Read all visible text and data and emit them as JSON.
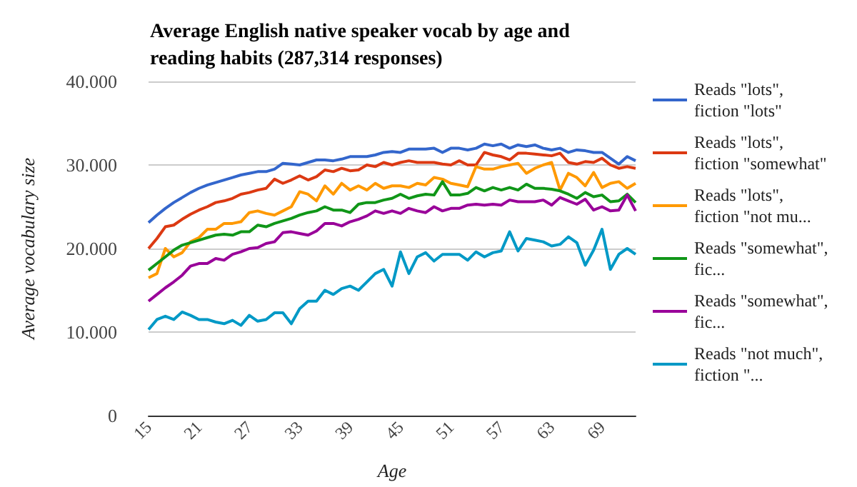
{
  "chart_data": {
    "type": "line",
    "title": "Average English native speaker vocab by age and reading habits (287,314 responses)",
    "xlabel": "Age",
    "ylabel": "Average vocabulary size",
    "categories": [
      "15",
      null,
      null,
      null,
      null,
      null,
      "21",
      null,
      null,
      null,
      null,
      null,
      "27",
      null,
      null,
      null,
      null,
      null,
      "33",
      null,
      null,
      null,
      null,
      null,
      "39",
      null,
      null,
      null,
      null,
      null,
      "45",
      null,
      null,
      null,
      null,
      null,
      "51",
      null,
      null,
      null,
      null,
      null,
      "57",
      null,
      null,
      null,
      null,
      null,
      "63",
      null,
      null,
      null,
      null,
      null,
      "69",
      null,
      null,
      null,
      null
    ],
    "ylim": [
      0,
      40000
    ],
    "yticks": [
      0,
      {
        "value": 10000,
        "label": "10.000"
      },
      {
        "value": 20000,
        "label": "20.000"
      },
      {
        "value": 30000,
        "label": "30.000"
      },
      {
        "value": 40000,
        "label": "40.000"
      }
    ],
    "grid": "y",
    "legend": "right",
    "marker": "none",
    "series": [
      {
        "name": "Reads \"lots\", fiction \"lots\"",
        "color": "#3366cc",
        "values": [
          23100,
          24000,
          24800,
          25500,
          26100,
          26700,
          27200,
          27600,
          27900,
          28200,
          28500,
          28800,
          29000,
          29200,
          29200,
          29500,
          30200,
          30100,
          30000,
          30300,
          30600,
          30600,
          30500,
          30700,
          31000,
          31000,
          31000,
          31200,
          31500,
          31600,
          31500,
          31900,
          31900,
          31900,
          32000,
          31500,
          32000,
          32000,
          31800,
          32000,
          32500,
          32300,
          32500,
          32000,
          32400,
          32200,
          32400,
          32000,
          31800,
          32000,
          31500,
          31800,
          31700,
          31500,
          31500,
          30800,
          30100,
          31000,
          30500
        ]
      },
      {
        "name": "Reads \"lots\", fiction \"somewhat\"",
        "color": "#dc3912",
        "values": [
          20000,
          21200,
          22600,
          22800,
          23500,
          24100,
          24600,
          25000,
          25500,
          25700,
          26000,
          26500,
          26700,
          27000,
          27200,
          28300,
          27800,
          28200,
          28700,
          28200,
          28600,
          29400,
          29200,
          29600,
          29300,
          29400,
          30000,
          29800,
          30300,
          30000,
          30300,
          30500,
          30300,
          30300,
          30300,
          30100,
          30000,
          30500,
          30000,
          30000,
          31500,
          31200,
          31000,
          30600,
          31400,
          31400,
          31300,
          31200,
          31100,
          31400,
          30300,
          30100,
          30400,
          30300,
          30800,
          30000,
          29600,
          29800,
          29600
        ]
      },
      {
        "name": "Reads \"lots\", fiction \"not mu...",
        "color": "#ff9900",
        "values": [
          16500,
          17000,
          20000,
          19000,
          19500,
          20800,
          21300,
          22300,
          22300,
          23000,
          23000,
          23200,
          24300,
          24500,
          24200,
          24000,
          24500,
          25000,
          26800,
          26500,
          25700,
          27500,
          26500,
          27800,
          27000,
          27500,
          27000,
          27800,
          27200,
          27500,
          27500,
          27300,
          27800,
          27600,
          28500,
          28300,
          27800,
          27600,
          27400,
          29800,
          29500,
          29500,
          29800,
          30000,
          30200,
          29000,
          29600,
          30000,
          30300,
          27000,
          29000,
          28500,
          27500,
          29100,
          27300,
          27800,
          28000,
          27200,
          27800
        ]
      },
      {
        "name": "Reads \"somewhat\", fic...",
        "color": "#109618",
        "values": [
          17400,
          18200,
          19000,
          19800,
          20400,
          20700,
          21000,
          21300,
          21600,
          21700,
          21600,
          22000,
          22000,
          22800,
          22600,
          23000,
          23300,
          23600,
          24000,
          24300,
          24500,
          25000,
          24600,
          24600,
          24300,
          25300,
          25500,
          25500,
          25800,
          26000,
          26500,
          26000,
          26300,
          26500,
          26400,
          28000,
          26400,
          26400,
          26600,
          27300,
          26900,
          27300,
          27000,
          27300,
          27000,
          27700,
          27200,
          27200,
          27100,
          26900,
          26500,
          26000,
          26700,
          26200,
          26400,
          25600,
          25700,
          26500,
          25500
        ]
      },
      {
        "name": "Reads \"somewhat\", fic...",
        "color": "#990099",
        "values": [
          13700,
          14500,
          15300,
          16000,
          16800,
          17900,
          18200,
          18200,
          18800,
          18600,
          19300,
          19600,
          20000,
          20100,
          20600,
          20800,
          21900,
          22000,
          21800,
          21600,
          22100,
          23000,
          23000,
          22700,
          23200,
          23500,
          23900,
          24500,
          24200,
          24500,
          24200,
          24800,
          24500,
          24300,
          25000,
          24500,
          24800,
          24800,
          25200,
          25300,
          25200,
          25300,
          25200,
          25800,
          25600,
          25600,
          25600,
          25800,
          25200,
          26100,
          25700,
          25300,
          25900,
          24600,
          25000,
          24500,
          24600,
          26400,
          24500
        ]
      },
      {
        "name": "Reads \"not much\", fiction \"...",
        "color": "#0099c6",
        "values": [
          10300,
          11500,
          11900,
          11500,
          12400,
          12000,
          11500,
          11500,
          11200,
          11000,
          11400,
          10800,
          12000,
          11300,
          11500,
          12300,
          12300,
          11000,
          12800,
          13700,
          13700,
          15000,
          14500,
          15200,
          15500,
          15000,
          16000,
          17000,
          17500,
          15500,
          19600,
          17000,
          19000,
          19500,
          18500,
          19300,
          19300,
          19300,
          18600,
          19600,
          19000,
          19500,
          19700,
          22000,
          19700,
          21200,
          21000,
          20800,
          20300,
          20500,
          21400,
          20700,
          18000,
          19800,
          22300,
          17500,
          19300,
          20000,
          19300
        ]
      }
    ]
  }
}
